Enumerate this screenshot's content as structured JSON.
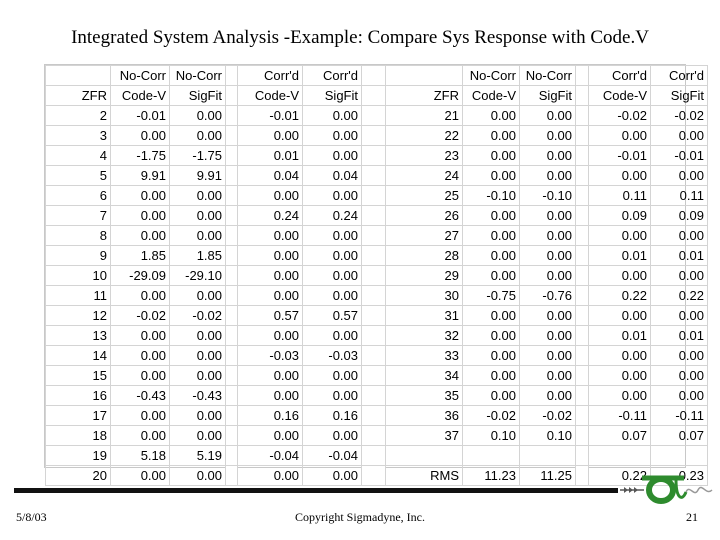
{
  "title": "Integrated System Analysis -Example: Compare Sys Response with Code.V",
  "header_row1": [
    "",
    "No-Corr",
    "No-Corr",
    "",
    "Corr'd",
    "Corr'd",
    "",
    "",
    "No-Corr",
    "No-Corr",
    "",
    "Corr'd",
    "Corr'd"
  ],
  "header_row2": [
    "ZFR",
    "Code-V",
    "SigFit",
    "",
    "Code-V",
    "SigFit",
    "",
    "ZFR",
    "Code-V",
    "SigFit",
    "",
    "Code-V",
    "SigFit"
  ],
  "rows": [
    [
      "2",
      "-0.01",
      "0.00",
      "",
      "-0.01",
      "0.00",
      "",
      "21",
      "0.00",
      "0.00",
      "",
      "-0.02",
      "-0.02"
    ],
    [
      "3",
      "0.00",
      "0.00",
      "",
      "0.00",
      "0.00",
      "",
      "22",
      "0.00",
      "0.00",
      "",
      "0.00",
      "0.00"
    ],
    [
      "4",
      "-1.75",
      "-1.75",
      "",
      "0.01",
      "0.00",
      "",
      "23",
      "0.00",
      "0.00",
      "",
      "-0.01",
      "-0.01"
    ],
    [
      "5",
      "9.91",
      "9.91",
      "",
      "0.04",
      "0.04",
      "",
      "24",
      "0.00",
      "0.00",
      "",
      "0.00",
      "0.00"
    ],
    [
      "6",
      "0.00",
      "0.00",
      "",
      "0.00",
      "0.00",
      "",
      "25",
      "-0.10",
      "-0.10",
      "",
      "0.11",
      "0.11"
    ],
    [
      "7",
      "0.00",
      "0.00",
      "",
      "0.24",
      "0.24",
      "",
      "26",
      "0.00",
      "0.00",
      "",
      "0.09",
      "0.09"
    ],
    [
      "8",
      "0.00",
      "0.00",
      "",
      "0.00",
      "0.00",
      "",
      "27",
      "0.00",
      "0.00",
      "",
      "0.00",
      "0.00"
    ],
    [
      "9",
      "1.85",
      "1.85",
      "",
      "0.00",
      "0.00",
      "",
      "28",
      "0.00",
      "0.00",
      "",
      "0.01",
      "0.01"
    ],
    [
      "10",
      "-29.09",
      "-29.10",
      "",
      "0.00",
      "0.00",
      "",
      "29",
      "0.00",
      "0.00",
      "",
      "0.00",
      "0.00"
    ],
    [
      "11",
      "0.00",
      "0.00",
      "",
      "0.00",
      "0.00",
      "",
      "30",
      "-0.75",
      "-0.76",
      "",
      "0.22",
      "0.22"
    ],
    [
      "12",
      "-0.02",
      "-0.02",
      "",
      "0.57",
      "0.57",
      "",
      "31",
      "0.00",
      "0.00",
      "",
      "0.00",
      "0.00"
    ],
    [
      "13",
      "0.00",
      "0.00",
      "",
      "0.00",
      "0.00",
      "",
      "32",
      "0.00",
      "0.00",
      "",
      "0.01",
      "0.01"
    ],
    [
      "14",
      "0.00",
      "0.00",
      "",
      "-0.03",
      "-0.03",
      "",
      "33",
      "0.00",
      "0.00",
      "",
      "0.00",
      "0.00"
    ],
    [
      "15",
      "0.00",
      "0.00",
      "",
      "0.00",
      "0.00",
      "",
      "34",
      "0.00",
      "0.00",
      "",
      "0.00",
      "0.00"
    ],
    [
      "16",
      "-0.43",
      "-0.43",
      "",
      "0.00",
      "0.00",
      "",
      "35",
      "0.00",
      "0.00",
      "",
      "0.00",
      "0.00"
    ],
    [
      "17",
      "0.00",
      "0.00",
      "",
      "0.16",
      "0.16",
      "",
      "36",
      "-0.02",
      "-0.02",
      "",
      "-0.11",
      "-0.11"
    ],
    [
      "18",
      "0.00",
      "0.00",
      "",
      "0.00",
      "0.00",
      "",
      "37",
      "0.10",
      "0.10",
      "",
      "0.07",
      "0.07"
    ],
    [
      "19",
      "5.18",
      "5.19",
      "",
      "-0.04",
      "-0.04",
      "",
      "",
      "",
      "",
      "",
      "",
      ""
    ],
    [
      "20",
      "0.00",
      "0.00",
      "",
      "0.00",
      "0.00",
      "",
      "RMS",
      "11.23",
      "11.25",
      "",
      "0.22",
      "0.23"
    ]
  ],
  "footer": {
    "date": "5/8/03",
    "copyright": "Copyright Sigmadyne, Inc.",
    "page_number": "21"
  },
  "logo": {
    "icon": "sigmadyne-logo-icon",
    "color": "#2e8b2e"
  }
}
